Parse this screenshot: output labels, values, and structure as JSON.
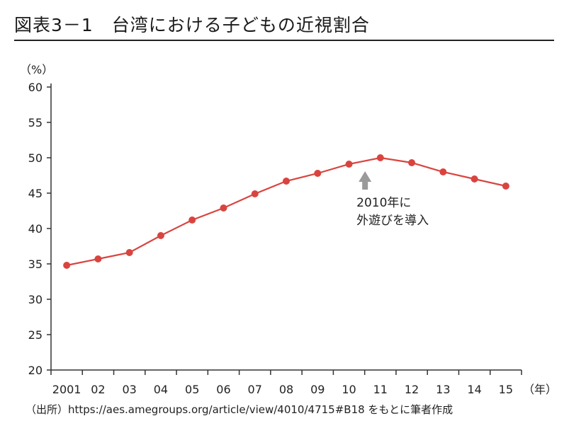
{
  "title": "図表3－1　台湾における子どもの近視割合",
  "source": "（出所）https://aes.amegroups.org/article/view/4010/4715#B18 をもとに筆者作成",
  "chart_data": {
    "type": "line",
    "title": "図表3－1　台湾における子どもの近視割合",
    "ylabel": "（%）",
    "xlabel": "（年）",
    "categories": [
      "2001",
      "02",
      "03",
      "04",
      "05",
      "06",
      "07",
      "08",
      "09",
      "10",
      "11",
      "12",
      "13",
      "14",
      "15"
    ],
    "values": [
      34.8,
      35.7,
      36.6,
      39.0,
      41.2,
      42.9,
      44.9,
      46.7,
      47.8,
      49.1,
      50.0,
      49.3,
      48.0,
      47.0,
      46.0
    ],
    "ylim": [
      20,
      60
    ],
    "yticks": [
      20,
      25,
      30,
      35,
      40,
      45,
      50,
      55,
      60
    ],
    "grid": false,
    "color": "#d9443f",
    "annotation": {
      "category": "10",
      "lines": [
        "2010年に",
        "外遊びを導入"
      ],
      "arrow_color": "#9a9a9a"
    }
  }
}
